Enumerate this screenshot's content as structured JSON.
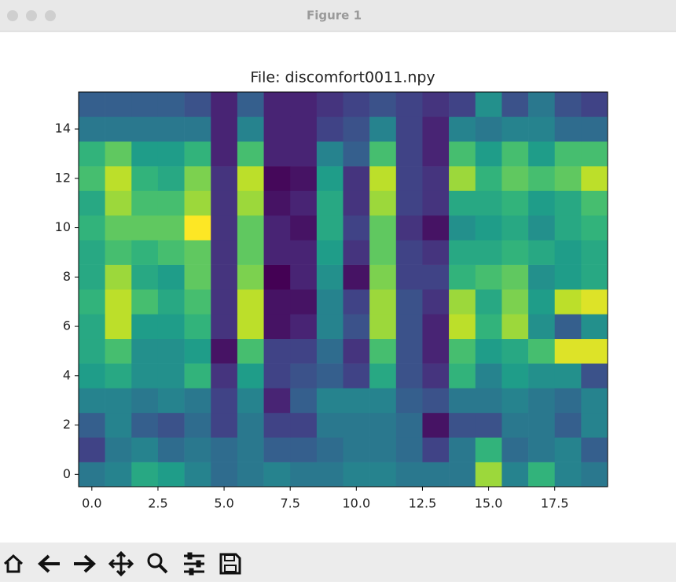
{
  "window": {
    "title": "Figure 1"
  },
  "chart_data": {
    "type": "heatmap",
    "title": "File: discomfort0011.npy",
    "colormap": "viridis",
    "xlim": [
      -0.5,
      19.5
    ],
    "ylim": [
      -0.5,
      15.5
    ],
    "xticks": [
      {
        "value": 0,
        "label": "0.0"
      },
      2.5,
      {
        "value": 5,
        "label": "5.0"
      },
      7.5,
      {
        "value": 10,
        "label": "10.0"
      },
      12.5,
      {
        "value": 15,
        "label": "15.0"
      },
      17.5
    ],
    "yticks": [
      0,
      2,
      4,
      6,
      8,
      10,
      12,
      14
    ],
    "values": [
      [
        0.4,
        0.45,
        0.6,
        0.55,
        0.45,
        0.35,
        0.4,
        0.45,
        0.4,
        0.4,
        0.45,
        0.45,
        0.4,
        0.4,
        0.4,
        0.85,
        0.45,
        0.65,
        0.45,
        0.4
      ],
      [
        0.2,
        0.4,
        0.45,
        0.35,
        0.4,
        0.35,
        0.4,
        0.3,
        0.3,
        0.35,
        0.4,
        0.4,
        0.35,
        0.2,
        0.4,
        0.65,
        0.35,
        0.4,
        0.45,
        0.3
      ],
      [
        0.3,
        0.45,
        0.3,
        0.25,
        0.35,
        0.2,
        0.4,
        0.2,
        0.2,
        0.4,
        0.4,
        0.4,
        0.35,
        0.05,
        0.25,
        0.25,
        0.4,
        0.4,
        0.3,
        0.45
      ],
      [
        0.45,
        0.45,
        0.4,
        0.45,
        0.4,
        0.2,
        0.45,
        0.1,
        0.3,
        0.45,
        0.45,
        0.45,
        0.3,
        0.25,
        0.4,
        0.4,
        0.45,
        0.4,
        0.35,
        0.45
      ],
      [
        0.55,
        0.6,
        0.5,
        0.5,
        0.65,
        0.15,
        0.55,
        0.2,
        0.25,
        0.3,
        0.2,
        0.6,
        0.25,
        0.15,
        0.65,
        0.45,
        0.55,
        0.5,
        0.5,
        0.25
      ],
      [
        0.6,
        0.7,
        0.5,
        0.5,
        0.55,
        0.05,
        0.7,
        0.2,
        0.2,
        0.35,
        0.15,
        0.7,
        0.25,
        0.1,
        0.7,
        0.55,
        0.6,
        0.7,
        0.95,
        0.95
      ],
      [
        0.6,
        0.9,
        0.55,
        0.55,
        0.65,
        0.15,
        0.9,
        0.05,
        0.1,
        0.45,
        0.25,
        0.85,
        0.25,
        0.1,
        0.9,
        0.65,
        0.85,
        0.5,
        0.3,
        0.5
      ],
      [
        0.65,
        0.9,
        0.7,
        0.6,
        0.7,
        0.15,
        0.9,
        0.05,
        0.05,
        0.45,
        0.2,
        0.85,
        0.25,
        0.15,
        0.85,
        0.6,
        0.8,
        0.55,
        0.9,
        0.95
      ],
      [
        0.6,
        0.85,
        0.6,
        0.55,
        0.75,
        0.15,
        0.8,
        0.0,
        0.1,
        0.5,
        0.05,
        0.8,
        0.2,
        0.2,
        0.65,
        0.7,
        0.75,
        0.5,
        0.55,
        0.6
      ],
      [
        0.6,
        0.7,
        0.65,
        0.7,
        0.75,
        0.15,
        0.75,
        0.1,
        0.1,
        0.55,
        0.15,
        0.75,
        0.2,
        0.15,
        0.6,
        0.6,
        0.65,
        0.6,
        0.55,
        0.6
      ],
      [
        0.65,
        0.75,
        0.75,
        0.75,
        1.0,
        0.15,
        0.75,
        0.1,
        0.05,
        0.6,
        0.2,
        0.75,
        0.15,
        0.05,
        0.5,
        0.55,
        0.6,
        0.5,
        0.6,
        0.65
      ],
      [
        0.6,
        0.85,
        0.7,
        0.7,
        0.85,
        0.15,
        0.85,
        0.05,
        0.1,
        0.6,
        0.15,
        0.85,
        0.2,
        0.15,
        0.6,
        0.6,
        0.65,
        0.55,
        0.6,
        0.7
      ],
      [
        0.7,
        0.9,
        0.65,
        0.6,
        0.8,
        0.15,
        0.9,
        0.02,
        0.05,
        0.55,
        0.15,
        0.9,
        0.2,
        0.15,
        0.85,
        0.65,
        0.75,
        0.7,
        0.75,
        0.9
      ],
      [
        0.65,
        0.75,
        0.55,
        0.55,
        0.65,
        0.1,
        0.7,
        0.1,
        0.1,
        0.45,
        0.3,
        0.7,
        0.2,
        0.1,
        0.7,
        0.55,
        0.7,
        0.55,
        0.7,
        0.7
      ],
      [
        0.4,
        0.4,
        0.4,
        0.4,
        0.4,
        0.1,
        0.45,
        0.1,
        0.1,
        0.2,
        0.25,
        0.45,
        0.2,
        0.1,
        0.45,
        0.4,
        0.45,
        0.45,
        0.35,
        0.35
      ],
      [
        0.3,
        0.3,
        0.3,
        0.3,
        0.25,
        0.1,
        0.3,
        0.1,
        0.1,
        0.15,
        0.2,
        0.25,
        0.2,
        0.15,
        0.2,
        0.5,
        0.25,
        0.4,
        0.25,
        0.2
      ]
    ]
  }
}
